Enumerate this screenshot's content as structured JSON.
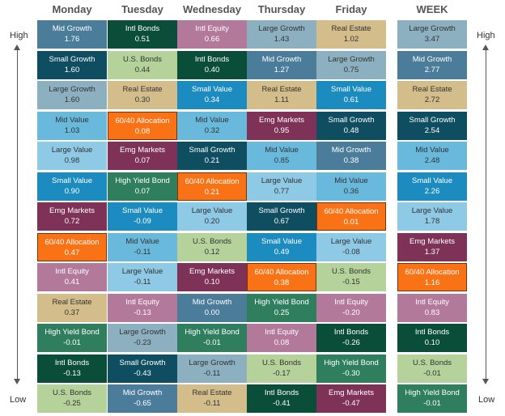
{
  "chart_data": {
    "type": "table",
    "axis_labels": {
      "high": "High",
      "low": "Low"
    },
    "category_colors": {
      "Mid Growth": "#4b7d9b",
      "Small Growth": "#0f4d61",
      "Large Growth": "#8db0c1",
      "Mid Value": "#69b9dc",
      "Large Value": "#8ec9e5",
      "Small Value": "#1c8cc0",
      "Emg Markets": "#7e3257",
      "60/40 Allocation": "#f97316",
      "Intl Equity": "#b2799a",
      "Real Estate": "#d2bd8b",
      "High Yield Bond": "#2f7f5e",
      "Intl Bonds": "#0a4e3a",
      "U.S. Bonds": "#b5d29b"
    },
    "light_text_categories": [
      "Real Estate",
      "U.S. Bonds",
      "Large Value",
      "Mid Value",
      "Large Growth"
    ],
    "columns": [
      {
        "header": "Monday",
        "cells": [
          {
            "name": "Mid Growth",
            "value": "1.76"
          },
          {
            "name": "Small Growth",
            "value": "1.60"
          },
          {
            "name": "Large Growth",
            "value": "1.60"
          },
          {
            "name": "Mid Value",
            "value": "1.03"
          },
          {
            "name": "Large Value",
            "value": "0.98"
          },
          {
            "name": "Small Value",
            "value": "0.90"
          },
          {
            "name": "Emg Markets",
            "value": "0.72"
          },
          {
            "name": "60/40 Allocation",
            "value": "0.47"
          },
          {
            "name": "Intl Equity",
            "value": "0.41"
          },
          {
            "name": "Real Estate",
            "value": "0.37"
          },
          {
            "name": "High Yield Bond",
            "value": "-0.01"
          },
          {
            "name": "Intl Bonds",
            "value": "-0.13"
          },
          {
            "name": "U.S. Bonds",
            "value": "-0.25"
          }
        ]
      },
      {
        "header": "Tuesday",
        "cells": [
          {
            "name": "Intl Bonds",
            "value": "0.51"
          },
          {
            "name": "U.S. Bonds",
            "value": "0.44"
          },
          {
            "name": "Real Estate",
            "value": "0.30"
          },
          {
            "name": "60/40 Allocation",
            "value": "0.08"
          },
          {
            "name": "Emg Markets",
            "value": "0.07"
          },
          {
            "name": "High Yield Bond",
            "value": "0.07"
          },
          {
            "name": "Small Value",
            "value": "-0.09"
          },
          {
            "name": "Mid Value",
            "value": "-0.11"
          },
          {
            "name": "Large Value",
            "value": "-0.11"
          },
          {
            "name": "Intl Equity",
            "value": "-0.13"
          },
          {
            "name": "Large Growth",
            "value": "-0.23"
          },
          {
            "name": "Small Growth",
            "value": "-0.43"
          },
          {
            "name": "Mid Growth",
            "value": "-0.65"
          }
        ]
      },
      {
        "header": "Wednesday",
        "cells": [
          {
            "name": "Intl Equity",
            "value": "0.66"
          },
          {
            "name": "Intl Bonds",
            "value": "0.40"
          },
          {
            "name": "Small Value",
            "value": "0.34"
          },
          {
            "name": "Mid Value",
            "value": "0.32"
          },
          {
            "name": "Small Growth",
            "value": "0.21"
          },
          {
            "name": "60/40 Allocation",
            "value": "0.21"
          },
          {
            "name": "Large Value",
            "value": "0.20"
          },
          {
            "name": "U.S. Bonds",
            "value": "0.12"
          },
          {
            "name": "Emg Markets",
            "value": "0.10"
          },
          {
            "name": "Mid Growth",
            "value": "0.00"
          },
          {
            "name": "High Yield Bond",
            "value": "-0.01"
          },
          {
            "name": "Large Growth",
            "value": "-0.11"
          },
          {
            "name": "Real Estate",
            "value": "-0.11"
          }
        ]
      },
      {
        "header": "Thursday",
        "cells": [
          {
            "name": "Large Growth",
            "value": "1.43"
          },
          {
            "name": "Mid Growth",
            "value": "1.27"
          },
          {
            "name": "Real Estate",
            "value": "1.11"
          },
          {
            "name": "Emg Markets",
            "value": "0.95"
          },
          {
            "name": "Mid Value",
            "value": "0.85"
          },
          {
            "name": "Large Value",
            "value": "0.77"
          },
          {
            "name": "Small Growth",
            "value": "0.67"
          },
          {
            "name": "Small Value",
            "value": "0.49"
          },
          {
            "name": "60/40 Allocation",
            "value": "0.38"
          },
          {
            "name": "High Yield Bond",
            "value": "0.25"
          },
          {
            "name": "Intl Equity",
            "value": "0.08"
          },
          {
            "name": "U.S. Bonds",
            "value": "-0.17"
          },
          {
            "name": "Intl Bonds",
            "value": "-0.41"
          }
        ]
      },
      {
        "header": "Friday",
        "cells": [
          {
            "name": "Real Estate",
            "value": "1.02"
          },
          {
            "name": "Large Growth",
            "value": "0.75"
          },
          {
            "name": "Small Value",
            "value": "0.61"
          },
          {
            "name": "Small Growth",
            "value": "0.48"
          },
          {
            "name": "Mid Growth",
            "value": "0.38"
          },
          {
            "name": "Mid Value",
            "value": "0.36"
          },
          {
            "name": "60/40 Allocation",
            "value": "0.01"
          },
          {
            "name": "Large Value",
            "value": "-0.08"
          },
          {
            "name": "U.S. Bonds",
            "value": "-0.15"
          },
          {
            "name": "Intl Equity",
            "value": "-0.20"
          },
          {
            "name": "Intl Bonds",
            "value": "-0.26"
          },
          {
            "name": "High Yield Bond",
            "value": "-0.30"
          },
          {
            "name": "Emg Markets",
            "value": "-0.47"
          }
        ]
      },
      {
        "header": "WEEK",
        "cells": [
          {
            "name": "Large Growth",
            "value": "3.47"
          },
          {
            "name": "Mid Growth",
            "value": "2.77"
          },
          {
            "name": "Real Estate",
            "value": "2.72"
          },
          {
            "name": "Small Growth",
            "value": "2.54"
          },
          {
            "name": "Mid Value",
            "value": "2.48"
          },
          {
            "name": "Small Value",
            "value": "2.26"
          },
          {
            "name": "Large Value",
            "value": "1.78"
          },
          {
            "name": "Emg Markets",
            "value": "1.37"
          },
          {
            "name": "60/40 Allocation",
            "value": "1.16"
          },
          {
            "name": "Intl Equity",
            "value": "0.83"
          },
          {
            "name": "Intl Bonds",
            "value": "0.10"
          },
          {
            "name": "U.S. Bonds",
            "value": "-0.01"
          },
          {
            "name": "High Yield Bond",
            "value": "-0.01"
          }
        ]
      }
    ]
  }
}
